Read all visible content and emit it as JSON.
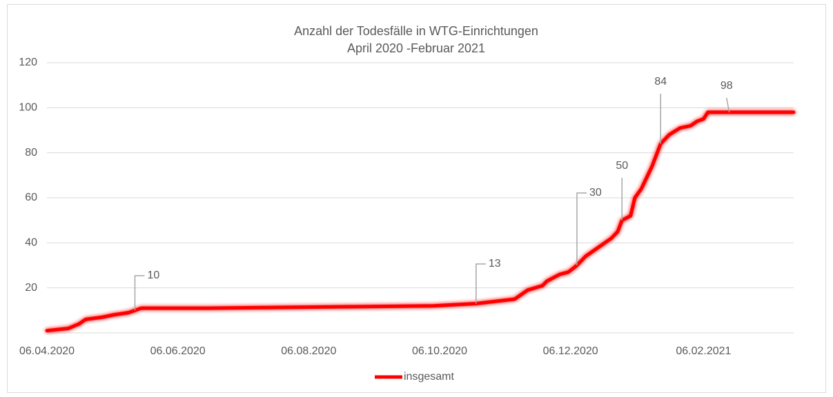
{
  "chart_data": {
    "type": "line",
    "title": "Anzahl der Todesfälle in WTG-Einrichtungen",
    "subtitle": "April 2020 -Februar 2021",
    "x": [
      "2020-04-06",
      "2020-04-16",
      "2020-04-21",
      "2020-04-24",
      "2020-05-02",
      "2020-05-07",
      "2020-05-14",
      "2020-05-17",
      "2020-05-20",
      "2020-06-20",
      "2020-10-03",
      "2020-10-23",
      "2020-11-10",
      "2020-11-16",
      "2020-11-23",
      "2020-11-25",
      "2020-12-01",
      "2020-12-05",
      "2020-12-09",
      "2020-12-13",
      "2020-12-25",
      "2020-12-28",
      "2020-12-30",
      "2021-01-03",
      "2021-01-05",
      "2021-01-08",
      "2021-01-10",
      "2021-01-13",
      "2021-01-17",
      "2021-01-21",
      "2021-01-26",
      "2021-01-31",
      "2021-02-03",
      "2021-02-06",
      "2021-02-08",
      "2021-03-20"
    ],
    "series": [
      {
        "name": "insgesamt",
        "color": "#ff0000",
        "values": [
          1,
          2,
          4,
          6,
          7,
          8,
          9,
          10,
          11,
          11,
          12,
          13,
          15,
          19,
          21,
          23,
          26,
          27,
          30,
          34,
          42,
          45,
          50,
          52,
          60,
          64,
          68,
          74,
          84,
          88,
          91,
          92,
          94,
          95,
          98,
          98
        ]
      }
    ],
    "annotations": [
      {
        "x": "2020-05-17",
        "value": 10
      },
      {
        "x": "2020-10-23",
        "value": 13
      },
      {
        "x": "2020-12-09",
        "value": 30
      },
      {
        "x": "2020-12-30",
        "value": 50
      },
      {
        "x": "2021-01-17",
        "value": 84
      },
      {
        "x": "2021-02-18",
        "value": 98
      }
    ],
    "xlim": [
      "2020-04-06",
      "2021-03-20"
    ],
    "xticks": [
      {
        "value": "2020-04-06",
        "label": "06.04.2020"
      },
      {
        "value": "2020-06-06",
        "label": "06.06.2020"
      },
      {
        "value": "2020-08-06",
        "label": "06.08.2020"
      },
      {
        "value": "2020-10-06",
        "label": "06.10.2020"
      },
      {
        "value": "2020-12-06",
        "label": "06.12.2020"
      },
      {
        "value": "2021-02-06",
        "label": "06.02.2021"
      }
    ],
    "ylim": [
      0,
      120
    ],
    "yticks": [
      20,
      40,
      60,
      80,
      100,
      120
    ],
    "grid": true,
    "legend": "bottom"
  }
}
